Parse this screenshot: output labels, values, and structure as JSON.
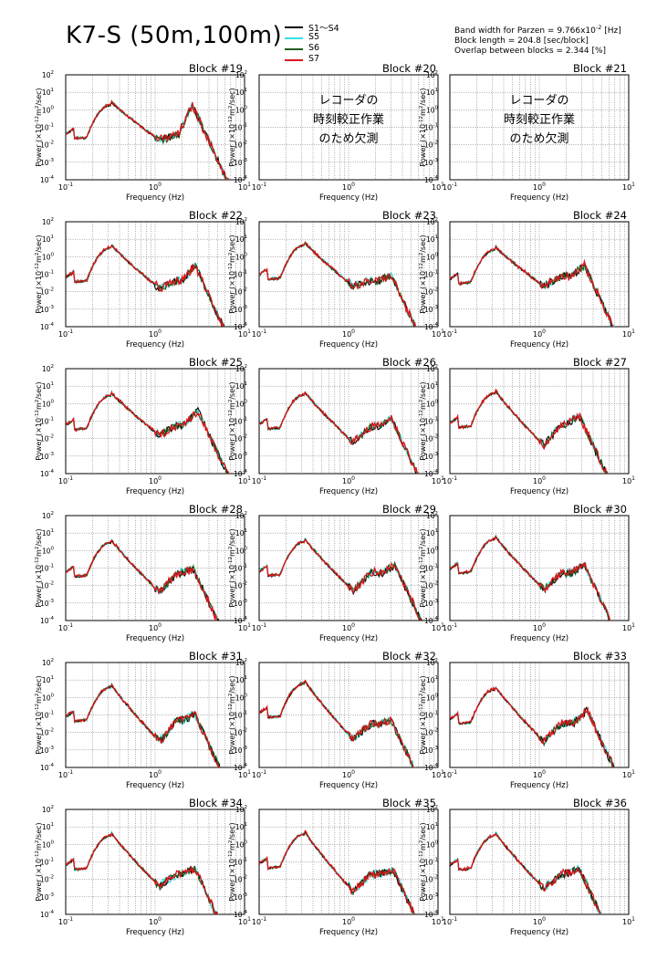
{
  "title": "K7-S (50m,100m)",
  "legend": [
    {
      "name": "S1～S4",
      "color": "#000000"
    },
    {
      "name": "S5",
      "color": "#33e0e0"
    },
    {
      "name": "S6",
      "color": "#1f5e1f"
    },
    {
      "name": "S7",
      "color": "#e0141a"
    }
  ],
  "params": {
    "line1_prefix": "Band width for Parzen = 9.766x10",
    "line1_exp": "-2",
    "line1_suffix": " [Hz]",
    "line2": "Block length = 204.8 [sec/block]",
    "line3": "Overlap between blocks = 2.344 [%]"
  },
  "axes": {
    "xlabel": "Frequency (Hz)",
    "ylabel_prefix": "Power (×10",
    "ylabel_exp": "-12",
    "ylabel_mid": "m",
    "ylabel_exp2": "2",
    "ylabel_suffix": "/sec)",
    "x_ticks": [
      {
        "base": "10",
        "exp": "-1"
      },
      {
        "base": "10",
        "exp": "0"
      },
      {
        "base": "10",
        "exp": "1"
      }
    ],
    "y_ticks": [
      {
        "base": "10",
        "exp": "2"
      },
      {
        "base": "10",
        "exp": "1"
      },
      {
        "base": "10",
        "exp": "0"
      },
      {
        "base": "10",
        "exp": "-1"
      },
      {
        "base": "10",
        "exp": "-2"
      },
      {
        "base": "10",
        "exp": "-3"
      },
      {
        "base": "10",
        "exp": "-4"
      }
    ]
  },
  "missing_note": [
    "レコーダの",
    "時刻較正作業",
    "のため欠測"
  ],
  "chart_data": {
    "type": "line",
    "xscale": "log",
    "yscale": "log",
    "xlim": [
      0.1,
      10
    ],
    "ylim": [
      0.0001,
      100
    ],
    "grid": true,
    "xlabel": "Frequency (Hz)",
    "ylabel": "Power (×10^-12 m^2/sec)",
    "series": [
      "S1～S4",
      "S5",
      "S6",
      "S7"
    ],
    "panels": [
      {
        "title": "Block #19",
        "missing": false,
        "peak": 3.0,
        "trough": 0.018,
        "hf": 0.04,
        "hfpeak": 1.8,
        "hfpeak_f": 2.6
      },
      {
        "title": "Block #20",
        "missing": true
      },
      {
        "title": "Block #21",
        "missing": true
      },
      {
        "title": "Block #22",
        "missing": false,
        "peak": 5.0,
        "trough": 0.015,
        "hf": 0.04,
        "hfpeak": 0.3,
        "hfpeak_f": 2.8
      },
      {
        "title": "Block #23",
        "missing": false,
        "peak": 7.0,
        "trough": 0.02,
        "hf": 0.04,
        "hfpeak": 0.08,
        "hfpeak_f": 3.0
      },
      {
        "title": "Block #24",
        "missing": false,
        "peak": 4.0,
        "trough": 0.02,
        "hf": 0.08,
        "hfpeak": 0.3,
        "hfpeak_f": 3.2
      },
      {
        "title": "Block #25",
        "missing": false,
        "peak": 4.5,
        "trough": 0.015,
        "hf": 0.06,
        "hfpeak": 0.4,
        "hfpeak_f": 3.0
      },
      {
        "title": "Block #26",
        "missing": false,
        "peak": 5.0,
        "trough": 0.006,
        "hf": 0.05,
        "hfpeak": 0.15,
        "hfpeak_f": 3.0
      },
      {
        "title": "Block #27",
        "missing": false,
        "peak": 6.0,
        "trough": 0.004,
        "hf": 0.06,
        "hfpeak": 0.2,
        "hfpeak_f": 2.8
      },
      {
        "title": "Block #28",
        "missing": false,
        "peak": 4.5,
        "trough": 0.004,
        "hf": 0.05,
        "hfpeak": 0.08,
        "hfpeak_f": 2.7
      },
      {
        "title": "Block #29",
        "missing": false,
        "peak": 5.0,
        "trough": 0.005,
        "hf": 0.05,
        "hfpeak": 0.15,
        "hfpeak_f": 3.3
      },
      {
        "title": "Block #30",
        "missing": false,
        "peak": 7.0,
        "trough": 0.006,
        "hf": 0.05,
        "hfpeak": 0.15,
        "hfpeak_f": 3.2
      },
      {
        "title": "Block #31",
        "missing": false,
        "peak": 6.0,
        "trough": 0.003,
        "hf": 0.05,
        "hfpeak": 0.1,
        "hfpeak_f": 2.8
      },
      {
        "title": "Block #32",
        "missing": false,
        "peak": 10.0,
        "trough": 0.004,
        "hf": 0.03,
        "hfpeak": 0.05,
        "hfpeak_f": 3.0
      },
      {
        "title": "Block #33",
        "missing": false,
        "peak": 4.5,
        "trough": 0.003,
        "hf": 0.03,
        "hfpeak": 0.2,
        "hfpeak_f": 3.4
      },
      {
        "title": "Block #34",
        "missing": false,
        "peak": 5.0,
        "trough": 0.004,
        "hf": 0.02,
        "hfpeak": 0.04,
        "hfpeak_f": 2.8
      },
      {
        "title": "Block #35",
        "missing": false,
        "peak": 6.0,
        "trough": 0.002,
        "hf": 0.02,
        "hfpeak": 0.03,
        "hfpeak_f": 3.2
      },
      {
        "title": "Block #36",
        "missing": false,
        "peak": 5.0,
        "trough": 0.003,
        "hf": 0.02,
        "hfpeak": 0.04,
        "hfpeak_f": 2.8
      }
    ]
  }
}
